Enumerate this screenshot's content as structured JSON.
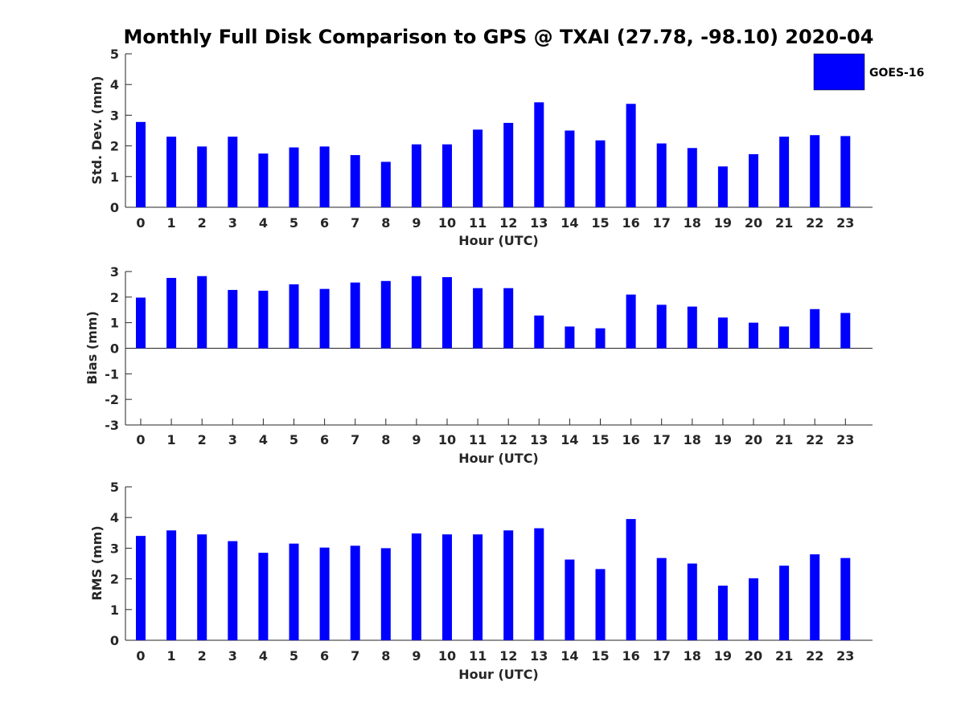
{
  "chart_data": [
    {
      "type": "bar",
      "title": "Monthly Full Disk Comparison to GPS @ TXAI (27.78, -98.10) 2020-04",
      "xlabel": "Hour (UTC)",
      "ylabel": "Std. Dev. (mm)",
      "ylim": [
        0,
        5
      ],
      "yticks": [
        0,
        1,
        2,
        3,
        4,
        5
      ],
      "categories": [
        "0",
        "1",
        "2",
        "3",
        "4",
        "5",
        "6",
        "7",
        "8",
        "9",
        "10",
        "11",
        "12",
        "13",
        "14",
        "15",
        "16",
        "17",
        "18",
        "19",
        "20",
        "21",
        "22",
        "23"
      ],
      "series": [
        {
          "name": "GOES-16",
          "color": "#0000ff",
          "values": [
            2.78,
            2.3,
            1.98,
            2.3,
            1.75,
            1.95,
            1.98,
            1.7,
            1.48,
            2.05,
            2.05,
            2.53,
            2.75,
            3.42,
            2.5,
            2.18,
            3.37,
            2.08,
            1.93,
            1.33,
            1.73,
            2.3,
            2.35,
            2.32
          ]
        }
      ],
      "legend": {
        "position": "top-right",
        "entries": [
          "GOES-16"
        ]
      }
    },
    {
      "type": "bar",
      "xlabel": "Hour (UTC)",
      "ylabel": "Bias (mm)",
      "ylim": [
        -3,
        3
      ],
      "yticks": [
        -3,
        -2,
        -1,
        0,
        1,
        2,
        3
      ],
      "categories": [
        "0",
        "1",
        "2",
        "3",
        "4",
        "5",
        "6",
        "7",
        "8",
        "9",
        "10",
        "11",
        "12",
        "13",
        "14",
        "15",
        "16",
        "17",
        "18",
        "19",
        "20",
        "21",
        "22",
        "23"
      ],
      "series": [
        {
          "name": "GOES-16",
          "color": "#0000ff",
          "values": [
            1.98,
            2.75,
            2.82,
            2.28,
            2.25,
            2.5,
            2.32,
            2.57,
            2.63,
            2.82,
            2.78,
            2.35,
            2.35,
            1.28,
            0.85,
            0.78,
            2.1,
            1.7,
            1.63,
            1.2,
            1.0,
            0.85,
            1.53,
            1.38
          ]
        }
      ]
    },
    {
      "type": "bar",
      "xlabel": "Hour (UTC)",
      "ylabel": "RMS (mm)",
      "ylim": [
        0,
        5
      ],
      "yticks": [
        0,
        1,
        2,
        3,
        4,
        5
      ],
      "categories": [
        "0",
        "1",
        "2",
        "3",
        "4",
        "5",
        "6",
        "7",
        "8",
        "9",
        "10",
        "11",
        "12",
        "13",
        "14",
        "15",
        "16",
        "17",
        "18",
        "19",
        "20",
        "21",
        "22",
        "23"
      ],
      "series": [
        {
          "name": "GOES-16",
          "color": "#0000ff",
          "values": [
            3.4,
            3.58,
            3.45,
            3.23,
            2.85,
            3.15,
            3.02,
            3.08,
            3.0,
            3.48,
            3.45,
            3.45,
            3.58,
            3.65,
            2.63,
            2.32,
            3.95,
            2.68,
            2.5,
            1.78,
            2.02,
            2.43,
            2.8,
            2.68
          ]
        }
      ]
    }
  ]
}
